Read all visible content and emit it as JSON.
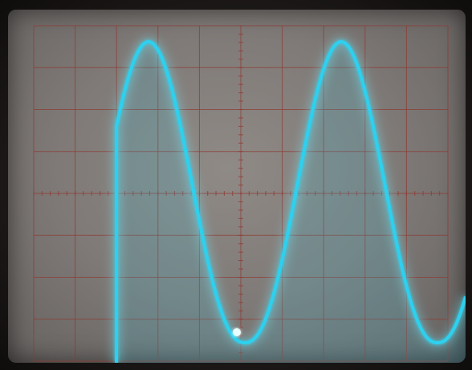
{
  "scope": {
    "screen_color": "#807b78",
    "grid_color": "#8e3b34",
    "trace_color": "#2fd0ee",
    "trace_glow": "#7ff0ff",
    "grid": {
      "major_columns": 10,
      "major_rows": 8,
      "minor_per_major": 5
    }
  }
}
